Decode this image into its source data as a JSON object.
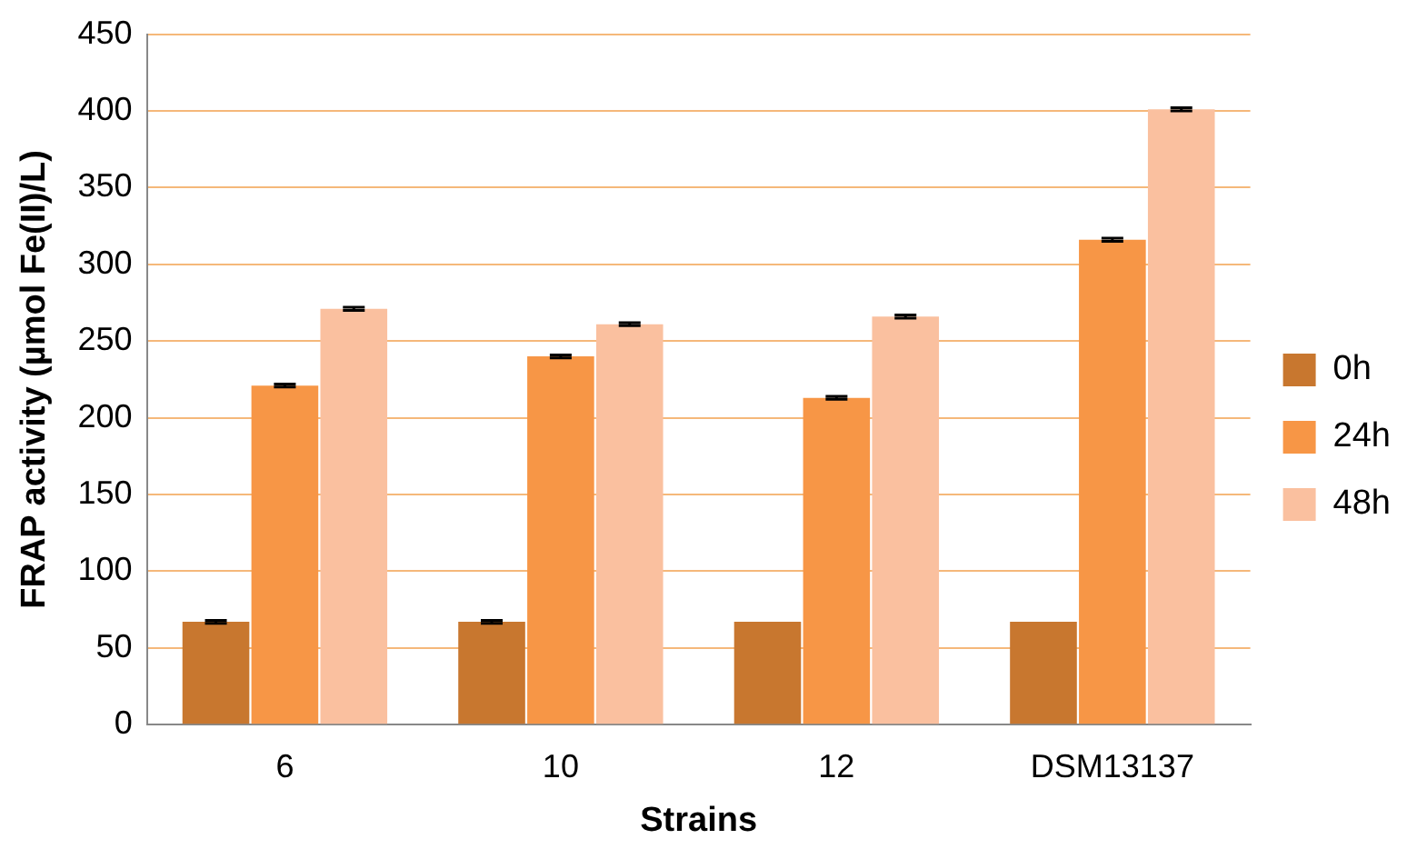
{
  "chart_data": {
    "type": "bar",
    "xlabel": "Strains",
    "ylabel": "FRAP activity (µmol Fe(II)/L)",
    "categories": [
      "6",
      "10",
      "12",
      "DSM13137"
    ],
    "series": [
      {
        "name": "0h",
        "color": "#c8772f",
        "values": [
          67,
          67,
          67,
          67
        ],
        "errors": [
          1,
          1,
          null,
          null
        ]
      },
      {
        "name": "24h",
        "color": "#f79646",
        "values": [
          221,
          240,
          213,
          316
        ],
        "errors": [
          1,
          1,
          1,
          1
        ]
      },
      {
        "name": "48h",
        "color": "#fac09f",
        "values": [
          271,
          261,
          266,
          401
        ],
        "errors": [
          1,
          1,
          1,
          1
        ]
      }
    ],
    "ylim": [
      0,
      450
    ],
    "yticks": [
      0,
      50,
      100,
      150,
      200,
      250,
      300,
      350,
      400,
      450
    ],
    "grid": "y",
    "legend": "right"
  }
}
